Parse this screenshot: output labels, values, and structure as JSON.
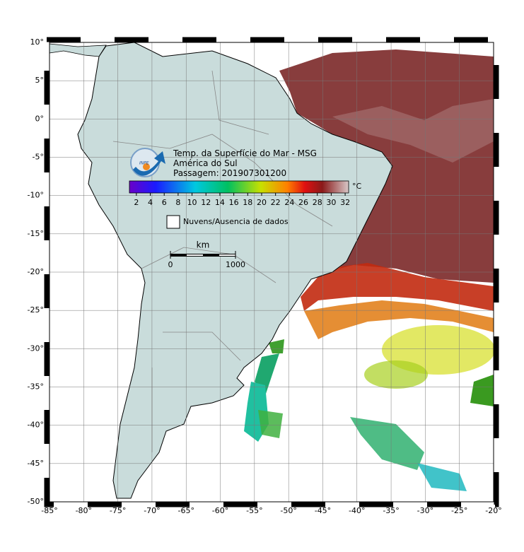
{
  "header": {
    "title": "Temp. da Superfície do Mar - MSG",
    "region": "América do Sul",
    "pass": "Passagem: 201907301200"
  },
  "logo": "INPE",
  "colorbar": {
    "unit": "°C",
    "range": [
      1,
      32.5
    ],
    "ticks": [
      2,
      4,
      6,
      8,
      10,
      12,
      14,
      16,
      18,
      20,
      22,
      24,
      26,
      28,
      30,
      32
    ]
  },
  "legend": {
    "no_data": "Nuvens/Ausencia de dados"
  },
  "scale_bar": {
    "unit": "km",
    "range": [
      0,
      1000
    ],
    "ticks": [
      0,
      1000
    ]
  },
  "map": {
    "lon_range": [
      -85,
      -20
    ],
    "lat_range": [
      -50,
      10
    ],
    "lon_ticks": [
      {
        "value": -85,
        "label": "-85°"
      },
      {
        "value": -80,
        "label": "-80°"
      },
      {
        "value": -75,
        "label": "-75°"
      },
      {
        "value": -70,
        "label": "-70°"
      },
      {
        "value": -65,
        "label": "-65°"
      },
      {
        "value": -60,
        "label": "-60°"
      },
      {
        "value": -55,
        "label": "-55°"
      },
      {
        "value": -50,
        "label": "-50°"
      },
      {
        "value": -45,
        "label": "-45°"
      },
      {
        "value": -40,
        "label": "-40°"
      },
      {
        "value": -35,
        "label": "-35°"
      },
      {
        "value": -30,
        "label": "-30°"
      },
      {
        "value": -25,
        "label": "-25°"
      },
      {
        "value": -20,
        "label": "-20°"
      }
    ],
    "lat_ticks": [
      {
        "value": 10,
        "label": "10°"
      },
      {
        "value": 5,
        "label": "5°"
      },
      {
        "value": 0,
        "label": "0°"
      },
      {
        "value": -5,
        "label": "-5°"
      },
      {
        "value": -10,
        "label": "-10°"
      },
      {
        "value": -15,
        "label": "-15°"
      },
      {
        "value": -20,
        "label": "-20°"
      },
      {
        "value": -25,
        "label": "-25°"
      },
      {
        "value": -30,
        "label": "-30°"
      },
      {
        "value": -35,
        "label": "-35°"
      },
      {
        "value": -40,
        "label": "-40°"
      },
      {
        "value": -45,
        "label": "-45°"
      },
      {
        "value": -50,
        "label": "-50°"
      }
    ]
  }
}
